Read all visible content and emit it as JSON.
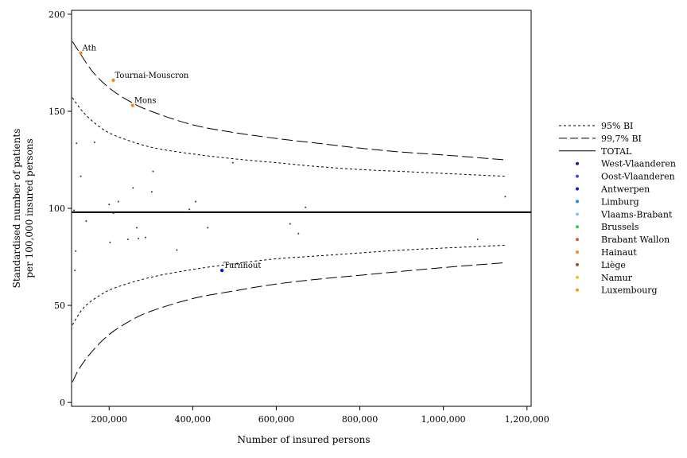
{
  "chart_data": {
    "type": "scatter",
    "xlabel": "Number of insured persons",
    "ylabel_lines": [
      "Standardised number of patients",
      "per 100,000 insured persons"
    ],
    "xlim": [
      110000,
      1210000
    ],
    "ylim": [
      -2,
      202
    ],
    "x_ticks": [
      200000,
      400000,
      600000,
      800000,
      1000000,
      1200000
    ],
    "x_tick_labels": [
      "200,000",
      "400,000",
      "600,000",
      "800,000",
      "1,000,000",
      "1,200,000"
    ],
    "y_ticks": [
      0,
      50,
      100,
      150,
      200
    ],
    "y_tick_labels": [
      "0",
      "50",
      "100",
      "150",
      "200"
    ],
    "grid": false,
    "legend_position": "right",
    "total": 98,
    "legend": [
      {
        "label": "95% BI",
        "kind": "line",
        "style": "dotted"
      },
      {
        "label": "99,7% BI",
        "kind": "line",
        "style": "dashed"
      },
      {
        "label": "TOTAL",
        "kind": "line",
        "style": "solid"
      },
      {
        "label": "West-Vlaanderen",
        "kind": "dot",
        "color": "#1a237e"
      },
      {
        "label": "Oost-Vlaanderen",
        "kind": "dot",
        "color": "#3f51b5"
      },
      {
        "label": "Antwerpen",
        "kind": "dot",
        "color": "#0d16e0"
      },
      {
        "label": "Limburg",
        "kind": "dot",
        "color": "#1e88e5"
      },
      {
        "label": "Vlaams-Brabant",
        "kind": "dot",
        "color": "#81c4f5"
      },
      {
        "label": "Brussels",
        "kind": "dot",
        "color": "#43c443"
      },
      {
        "label": "Brabant Wallon",
        "kind": "dot",
        "color": "#e0562a"
      },
      {
        "label": "Hainaut",
        "kind": "dot",
        "color": "#f08a24"
      },
      {
        "label": "Liège",
        "kind": "dot",
        "color": "#a0522d"
      },
      {
        "label": "Namur",
        "kind": "dot",
        "color": "#f5c518"
      },
      {
        "label": "Luxembourg",
        "kind": "dot",
        "color": "#f39c12"
      }
    ],
    "highlighted_points": [
      {
        "label": "Ath",
        "x": 132000,
        "y": 180,
        "color": "#f08a24"
      },
      {
        "label": "Tournai-Mouscron",
        "x": 210000,
        "y": 166,
        "color": "#f08a24"
      },
      {
        "label": "Mons",
        "x": 256000,
        "y": 153,
        "color": "#f08a24"
      },
      {
        "label": "Turnhout",
        "x": 470000,
        "y": 68,
        "color": "#0d16e0"
      }
    ],
    "other_points": [
      {
        "x": 116000,
        "y": 99
      },
      {
        "x": 118000,
        "y": 68
      },
      {
        "x": 120000,
        "y": 78
      },
      {
        "x": 122000,
        "y": 133.5
      },
      {
        "x": 132000,
        "y": 116.5
      },
      {
        "x": 145000,
        "y": 93.5
      },
      {
        "x": 165000,
        "y": 134
      },
      {
        "x": 200000,
        "y": 102
      },
      {
        "x": 202000,
        "y": 82.5
      },
      {
        "x": 210000,
        "y": 97.5
      },
      {
        "x": 222000,
        "y": 103.5
      },
      {
        "x": 245000,
        "y": 84
      },
      {
        "x": 257000,
        "y": 110.5
      },
      {
        "x": 266000,
        "y": 90
      },
      {
        "x": 270000,
        "y": 84.5
      },
      {
        "x": 287000,
        "y": 85
      },
      {
        "x": 302000,
        "y": 108.5
      },
      {
        "x": 305000,
        "y": 119
      },
      {
        "x": 362000,
        "y": 78.5
      },
      {
        "x": 392000,
        "y": 99.5
      },
      {
        "x": 407000,
        "y": 103.5
      },
      {
        "x": 436000,
        "y": 90
      },
      {
        "x": 496000,
        "y": 123.5
      },
      {
        "x": 633000,
        "y": 92
      },
      {
        "x": 653000,
        "y": 87
      },
      {
        "x": 670000,
        "y": 100.5
      },
      {
        "x": 1082000,
        "y": 84
      },
      {
        "x": 1148000,
        "y": 106
      }
    ],
    "bands": {
      "upper_997": [
        [
          112000,
          186
        ],
        [
          130000,
          180
        ],
        [
          160000,
          170.5
        ],
        [
          200000,
          162
        ],
        [
          250000,
          155
        ],
        [
          300000,
          150
        ],
        [
          400000,
          143
        ],
        [
          500000,
          139
        ],
        [
          600000,
          136
        ],
        [
          700000,
          133.5
        ],
        [
          800000,
          131
        ],
        [
          900000,
          129
        ],
        [
          1000000,
          127.5
        ],
        [
          1148000,
          125
        ]
      ],
      "upper_95": [
        [
          112000,
          157
        ],
        [
          140000,
          149
        ],
        [
          180000,
          141.5
        ],
        [
          220000,
          137
        ],
        [
          300000,
          131.5
        ],
        [
          400000,
          128
        ],
        [
          500000,
          125.5
        ],
        [
          600000,
          123.5
        ],
        [
          700000,
          121.5
        ],
        [
          800000,
          120
        ],
        [
          900000,
          119
        ],
        [
          1000000,
          118
        ],
        [
          1148000,
          116.5
        ]
      ],
      "lower_95": [
        [
          112000,
          40
        ],
        [
          140000,
          49
        ],
        [
          180000,
          55.5
        ],
        [
          220000,
          59.5
        ],
        [
          300000,
          64.5
        ],
        [
          400000,
          68.5
        ],
        [
          500000,
          71.5
        ],
        [
          600000,
          74
        ],
        [
          700000,
          75.5
        ],
        [
          800000,
          77
        ],
        [
          900000,
          78.5
        ],
        [
          1000000,
          79.5
        ],
        [
          1148000,
          81
        ]
      ],
      "lower_997": [
        [
          112000,
          10.5
        ],
        [
          130000,
          18
        ],
        [
          160000,
          26.5
        ],
        [
          200000,
          35
        ],
        [
          250000,
          42
        ],
        [
          300000,
          47
        ],
        [
          400000,
          53.5
        ],
        [
          500000,
          57.5
        ],
        [
          600000,
          61
        ],
        [
          700000,
          63.5
        ],
        [
          800000,
          65.5
        ],
        [
          900000,
          67.5
        ],
        [
          1000000,
          69.5
        ],
        [
          1148000,
          72
        ]
      ]
    }
  }
}
